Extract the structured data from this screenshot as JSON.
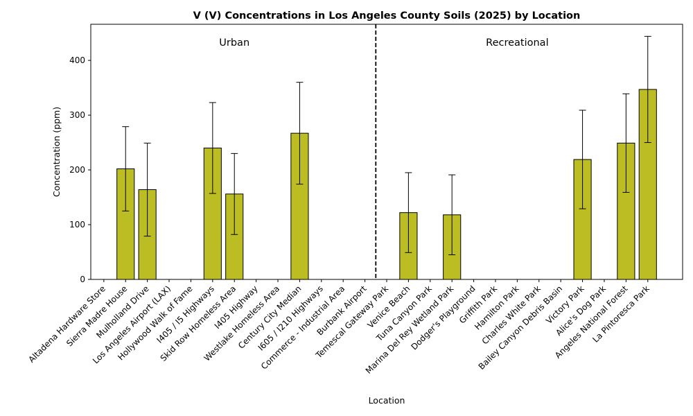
{
  "chart_data": {
    "type": "bar",
    "title": "V (V) Concentrations in Los Angeles County Soils (2025) by Location",
    "xlabel": "Location",
    "ylabel": "Concentration (ppm)",
    "ylim": [
      0,
      466
    ],
    "yticks": [
      0,
      100,
      200,
      300,
      400
    ],
    "grid": false,
    "bar_color": "#bcbd22",
    "edge_color": "#000000",
    "categories": [
      "Altadena Hardware Store",
      "Sierra Madre House",
      "Mulholland Drive",
      "Los Angeles Airport (LAX)",
      "Hollywood Walk of Fame",
      "I405 / I5 Highways",
      "Skid Row Homeless Area",
      "I405 Highway",
      "Westlake Homeless Area",
      "Century City Median",
      "I605 / I210 Highways",
      "Commerce - Industrial Area",
      "Burbank Airport",
      "Temescal Gateway Park",
      "Venice Beach",
      "Tuna Canyon Park",
      "Marina Del Rey Wetland Park",
      "Dodger's Playground",
      "Griffith Park",
      "Hamilton Park",
      "Charles White Park",
      "Bailey Canyon Debris Basin",
      "Victory Park",
      "Alice's Dog Park",
      "Angeles National Forest",
      "La Pintoresca Park"
    ],
    "values": [
      null,
      202,
      164,
      null,
      null,
      240,
      156,
      null,
      null,
      267,
      null,
      null,
      null,
      null,
      122,
      null,
      118,
      null,
      null,
      null,
      null,
      null,
      219,
      null,
      249,
      347
    ],
    "errors": [
      null,
      77,
      85,
      null,
      null,
      83,
      74,
      null,
      null,
      93,
      null,
      null,
      null,
      null,
      73,
      null,
      73,
      null,
      null,
      null,
      null,
      null,
      90,
      null,
      90,
      97
    ],
    "regions": [
      {
        "label": "Urban",
        "start_index": 0,
        "end_index": 12
      },
      {
        "label": "Recreational",
        "start_index": 13,
        "end_index": 25
      }
    ],
    "divider_after_index": 12.5
  }
}
